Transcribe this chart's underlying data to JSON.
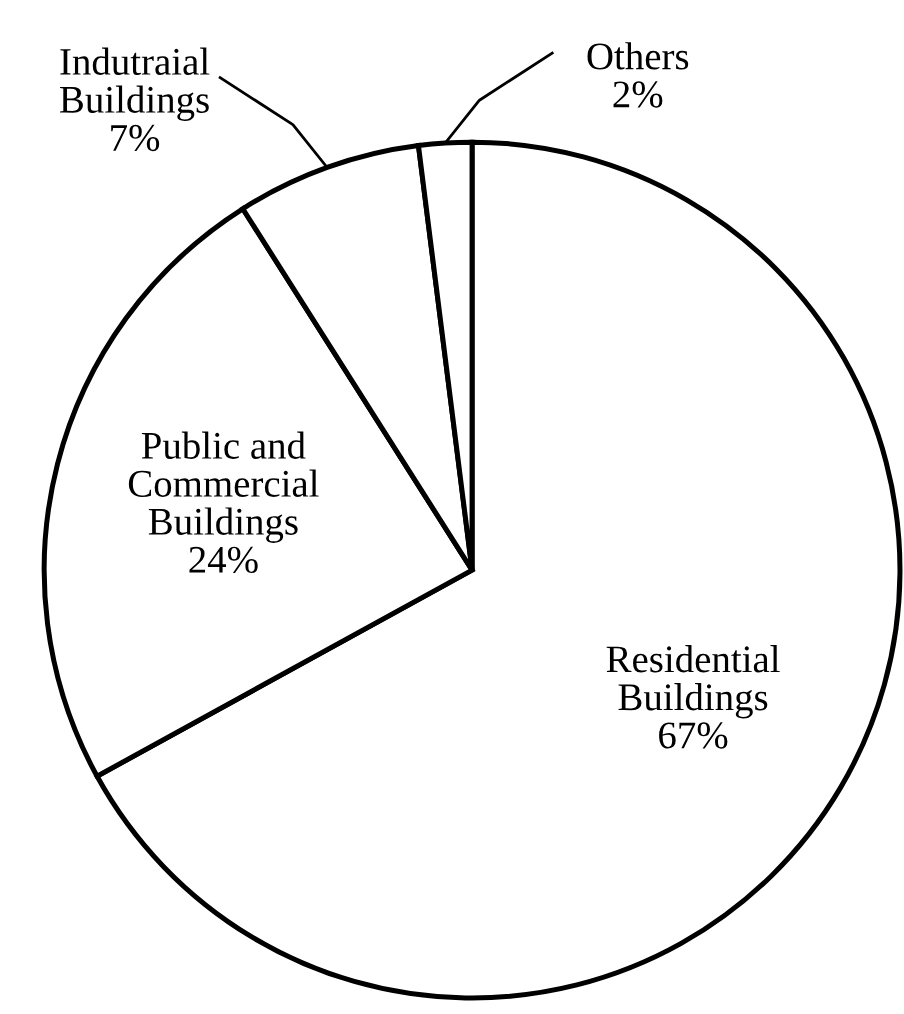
{
  "chart_data": {
    "type": "pie",
    "categories": [
      "Residential\nBuildings",
      "Public and\nCommercial\nBuildings",
      "Indutraial\nBuildings",
      "Others"
    ],
    "values": [
      67,
      24,
      7,
      2
    ],
    "colors": [
      "#ffffff",
      "#ffffff",
      "#ffffff",
      "#ffffff"
    ],
    "value_labels": [
      "67%",
      "24%",
      "7%",
      "2%"
    ]
  }
}
